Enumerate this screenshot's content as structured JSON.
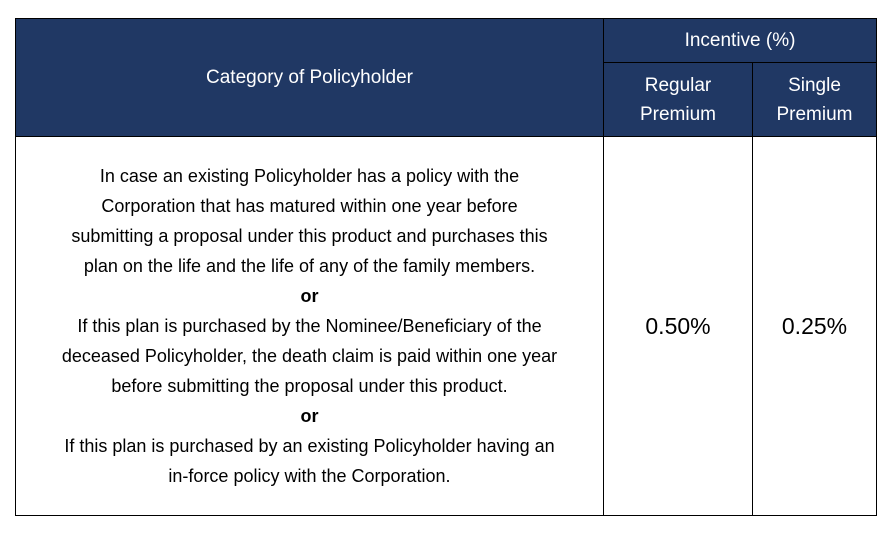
{
  "header": {
    "category": "Category of Policyholder",
    "incentive": "Incentive (%)",
    "regular": [
      "Regular",
      "Premium"
    ],
    "single": [
      "Single",
      "Premium"
    ]
  },
  "row": {
    "category_lines": [
      {
        "text": "In case an existing Policyholder has a policy with the",
        "bold": false
      },
      {
        "text": "Corporation that has matured within one year before",
        "bold": false
      },
      {
        "text": "submitting a proposal under this product and purchases this",
        "bold": false
      },
      {
        "text": "plan on the life and the life of any of the family members.",
        "bold": false
      },
      {
        "text": "or",
        "bold": true
      },
      {
        "text": "If this plan is purchased by the Nominee/Beneficiary of the",
        "bold": false
      },
      {
        "text": "deceased Policyholder, the death claim is paid within one year",
        "bold": false
      },
      {
        "text": "before submitting the proposal under this product.",
        "bold": false
      },
      {
        "text": "or",
        "bold": true
      },
      {
        "text": "If this plan is purchased by an existing Policyholder having an",
        "bold": false
      },
      {
        "text": "in-force policy with the Corporation.",
        "bold": false
      }
    ],
    "regular": "0.50%",
    "single": "0.25%"
  },
  "colors": {
    "header_bg": "#203864",
    "header_text": "#ffffff",
    "border": "#000000"
  }
}
